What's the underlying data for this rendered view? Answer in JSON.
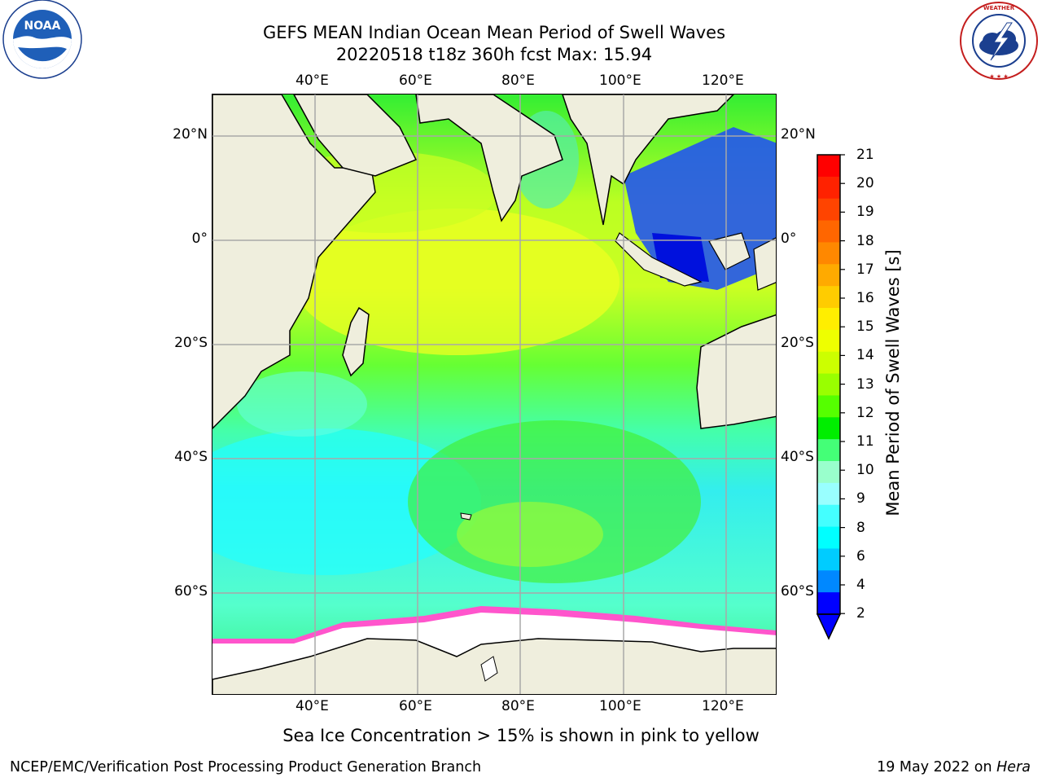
{
  "title": {
    "line1": "GEFS MEAN Indian Ocean Mean Period of Swell Waves",
    "line2": "20220518 t18z 360h fcst   Max: 15.94"
  },
  "logos": {
    "noaa_text": "NOAA",
    "noaa_ring": "NATIONAL OCEANIC AND ATMOSPHERIC ADMINISTRATION · U.S. DEPARTMENT OF COMMERCE",
    "nws_ring": "NATIONAL WEATHER SERVICE"
  },
  "axes": {
    "lon_ticks": [
      "40°E",
      "60°E",
      "80°E",
      "100°E",
      "120°E"
    ],
    "lat_ticks": [
      "20°N",
      "0°",
      "20°S",
      "40°S",
      "60°S"
    ]
  },
  "colorbar": {
    "label": "Mean Period of Swell Waves [s]",
    "ticks": [
      "21",
      "20",
      "19",
      "18",
      "17",
      "16",
      "15",
      "14",
      "13",
      "12",
      "11",
      "10",
      "9",
      "8",
      "6",
      "4",
      "2"
    ],
    "colors": [
      "#ff0000",
      "#ff2200",
      "#ff4400",
      "#ff6600",
      "#ff8800",
      "#ffaa00",
      "#ffcc00",
      "#ffee00",
      "#eeff00",
      "#ccff00",
      "#99ff00",
      "#55ff00",
      "#00ee00",
      "#44ff77",
      "#99ffcc",
      "#99ffff",
      "#44ffff",
      "#00ffff",
      "#00ccff",
      "#0088ff",
      "#0000ff"
    ]
  },
  "caption": "Sea Ice Concentration > 15% is shown in pink to yellow",
  "footer": {
    "left": "NCEP/EMC/Verification Post Processing Product Generation Branch",
    "right_date": "19 May 2022 on ",
    "right_host": "Hera"
  }
}
